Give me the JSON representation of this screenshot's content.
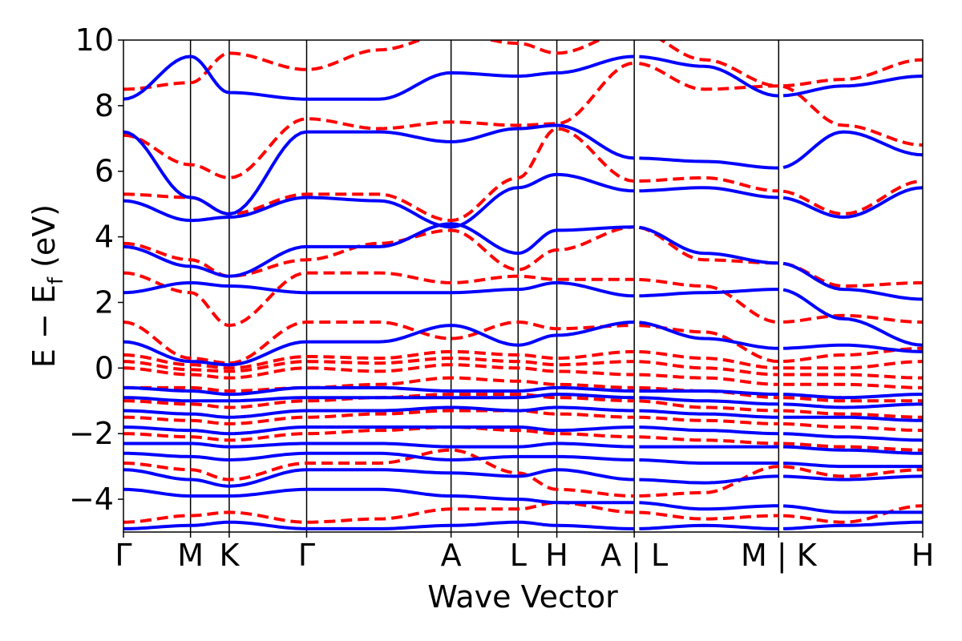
{
  "chart_data": {
    "type": "line",
    "title": "",
    "xlabel": "Wave Vector",
    "ylabel": "E − E_f (eV)",
    "ylabel_parts": {
      "main": "E − E",
      "sub": "f",
      "unit": " (eV)"
    },
    "ylim": [
      -5,
      10
    ],
    "yticks": [
      10,
      8,
      6,
      4,
      2,
      0,
      -2,
      -4
    ],
    "ytick_labels": [
      "10",
      "8",
      "6",
      "4",
      "2",
      "0",
      "−2",
      "−4"
    ],
    "kpath": {
      "positions": [
        0,
        0.5774,
        0.9107,
        1.5774,
        2.8212,
        3.3985,
        3.7319,
        4.3985,
        5.6423,
        6.8827
      ],
      "labels": [
        "Γ",
        "M",
        "K",
        "Γ",
        "A",
        "L",
        "H",
        "A | L",
        "M | K",
        "H"
      ],
      "breaks": [
        4.3985,
        5.6423
      ]
    },
    "grid": false,
    "legend": "none",
    "series": [
      {
        "style": "dashed",
        "color": "#ff0000",
        "bands": [
          [
            8.5,
            8.7,
            9.6,
            9.1,
            9.7,
            10.2,
            9.9,
            9.6,
            10.3,
            9.4,
            8.6,
            8.8,
            9.4
          ],
          [
            7.1,
            6.2,
            5.8,
            7.6,
            7.3,
            7.5,
            7.4,
            7.45,
            9.3,
            8.5,
            8.6,
            7.4,
            6.8
          ],
          [
            5.3,
            5.2,
            4.7,
            5.3,
            5.3,
            4.5,
            5.8,
            7.3,
            5.7,
            5.8,
            5.4,
            4.7,
            5.7
          ],
          [
            3.8,
            3.3,
            2.8,
            3.3,
            3.8,
            4.2,
            3.0,
            3.6,
            4.3,
            3.3,
            3.2,
            2.5,
            2.6
          ],
          [
            2.9,
            2.3,
            1.3,
            2.9,
            2.9,
            2.6,
            2.8,
            2.7,
            2.7,
            2.5,
            1.4,
            1.6,
            1.4
          ],
          [
            1.4,
            0.3,
            0.15,
            1.4,
            1.4,
            0.9,
            1.4,
            1.2,
            1.3,
            1.1,
            0.2,
            0.4,
            0.6
          ],
          [
            0.4,
            0.1,
            0.0,
            0.35,
            0.3,
            0.5,
            0.4,
            0.3,
            0.5,
            0.3,
            0.0,
            0.0,
            0.2
          ],
          [
            0.2,
            -0.05,
            -0.1,
            0.2,
            0.15,
            0.3,
            0.2,
            0.1,
            0.2,
            0.0,
            -0.2,
            -0.2,
            -0.3
          ],
          [
            0.0,
            -0.2,
            -0.3,
            0.0,
            -0.1,
            0.1,
            0.0,
            -0.1,
            -0.2,
            -0.3,
            -0.5,
            -0.5,
            -0.6
          ],
          [
            -0.6,
            -0.6,
            -0.7,
            -0.6,
            -0.5,
            -0.3,
            -0.4,
            -0.5,
            -0.6,
            -0.7,
            -0.9,
            -1.0,
            -1.0
          ],
          [
            -1.0,
            -1.1,
            -1.2,
            -1.0,
            -0.9,
            -0.8,
            -0.8,
            -0.9,
            -1.0,
            -1.2,
            -1.3,
            -1.4,
            -1.5
          ],
          [
            -1.5,
            -1.6,
            -1.7,
            -1.5,
            -1.4,
            -1.3,
            -1.3,
            -1.4,
            -1.5,
            -1.6,
            -1.7,
            -1.8,
            -1.9
          ],
          [
            -2.0,
            -2.1,
            -2.2,
            -2.0,
            -1.9,
            -1.8,
            -1.9,
            -2.0,
            -2.1,
            -2.2,
            -2.3,
            -2.4,
            -2.5
          ],
          [
            -2.9,
            -3.1,
            -3.4,
            -2.9,
            -2.9,
            -2.5,
            -3.2,
            -3.7,
            -3.9,
            -3.8,
            -3.0,
            -3.3,
            -3.1
          ],
          [
            -4.7,
            -4.5,
            -4.4,
            -4.7,
            -4.6,
            -4.3,
            -4.3,
            -4.1,
            -4.4,
            -4.6,
            -4.5,
            -4.7,
            -4.2
          ]
        ]
      },
      {
        "style": "solid",
        "color": "#0000ff",
        "bands": [
          [
            8.2,
            9.5,
            8.4,
            8.2,
            8.2,
            9.0,
            8.9,
            9.0,
            9.5,
            9.2,
            8.3,
            8.6,
            8.9
          ],
          [
            7.2,
            5.2,
            4.7,
            7.2,
            7.2,
            6.9,
            7.3,
            7.4,
            6.4,
            6.3,
            6.1,
            7.2,
            6.5
          ],
          [
            5.1,
            4.5,
            4.6,
            5.2,
            5.1,
            4.3,
            5.5,
            5.9,
            5.4,
            5.5,
            5.2,
            4.6,
            5.5
          ],
          [
            3.7,
            3.1,
            2.8,
            3.7,
            3.7,
            4.4,
            3.5,
            4.2,
            4.3,
            3.5,
            3.2,
            2.4,
            2.1
          ],
          [
            2.3,
            2.6,
            2.5,
            2.3,
            2.3,
            2.3,
            2.4,
            2.6,
            2.2,
            2.3,
            2.4,
            1.5,
            0.7
          ],
          [
            0.8,
            0.2,
            0.1,
            0.8,
            0.8,
            1.3,
            0.7,
            1.0,
            1.4,
            0.9,
            0.6,
            0.7,
            0.5
          ],
          [
            -0.6,
            -0.7,
            -0.8,
            -0.6,
            -0.6,
            -0.7,
            -0.7,
            -0.6,
            -0.7,
            -0.7,
            -0.8,
            -0.9,
            -0.8
          ],
          [
            -0.9,
            -1.0,
            -1.0,
            -0.9,
            -0.9,
            -0.9,
            -0.9,
            -0.8,
            -0.9,
            -1.0,
            -1.1,
            -1.2,
            -1.1
          ],
          [
            -1.3,
            -1.4,
            -1.5,
            -1.3,
            -1.3,
            -1.2,
            -1.3,
            -1.2,
            -1.3,
            -1.4,
            -1.5,
            -1.5,
            -1.6
          ],
          [
            -1.8,
            -1.9,
            -2.0,
            -1.8,
            -1.8,
            -1.8,
            -1.8,
            -1.9,
            -1.8,
            -1.9,
            -2.0,
            -2.1,
            -2.2
          ],
          [
            -2.3,
            -2.3,
            -2.4,
            -2.3,
            -2.3,
            -2.4,
            -2.4,
            -2.3,
            -2.4,
            -2.4,
            -2.4,
            -2.5,
            -2.6
          ],
          [
            -2.6,
            -2.7,
            -2.8,
            -2.6,
            -2.6,
            -2.8,
            -2.7,
            -2.7,
            -2.8,
            -2.9,
            -2.9,
            -3.0,
            -3.0
          ],
          [
            -3.1,
            -3.4,
            -3.6,
            -3.1,
            -3.1,
            -3.2,
            -3.3,
            -3.1,
            -3.4,
            -3.5,
            -3.3,
            -3.4,
            -3.3
          ],
          [
            -3.7,
            -3.9,
            -3.9,
            -3.7,
            -3.7,
            -3.9,
            -4.0,
            -4.1,
            -4.1,
            -4.3,
            -4.2,
            -4.4,
            -4.4
          ],
          [
            -4.9,
            -4.8,
            -4.7,
            -4.9,
            -4.9,
            -4.8,
            -4.7,
            -4.8,
            -4.9,
            -4.8,
            -4.9,
            -4.8,
            -4.7
          ]
        ]
      }
    ]
  }
}
